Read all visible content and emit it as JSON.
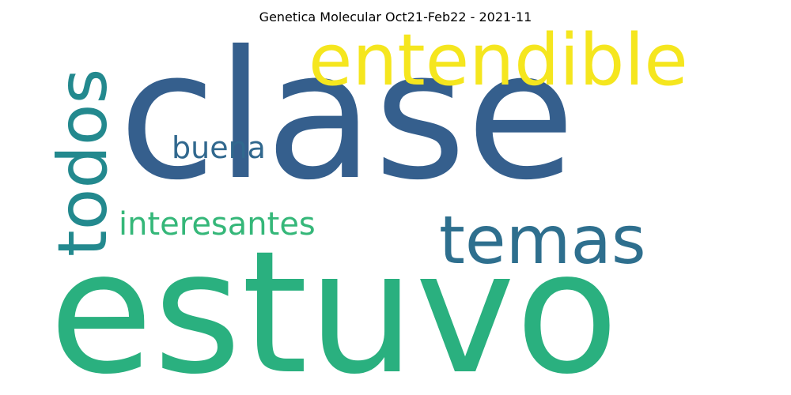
{
  "title": "Genetica Molecular Oct21-Feb22 - 2021-11",
  "words": [
    {
      "text": "clase",
      "color": "#355f8d"
    },
    {
      "text": "estuvo",
      "color": "#2ab07f"
    },
    {
      "text": "entendible",
      "color": "#f5e61e"
    },
    {
      "text": "temas",
      "color": "#2e6f8e"
    },
    {
      "text": "todos",
      "color": "#23898e"
    },
    {
      "text": "buena",
      "color": "#31688e"
    },
    {
      "text": "interesantes",
      "color": "#35b779"
    }
  ]
}
